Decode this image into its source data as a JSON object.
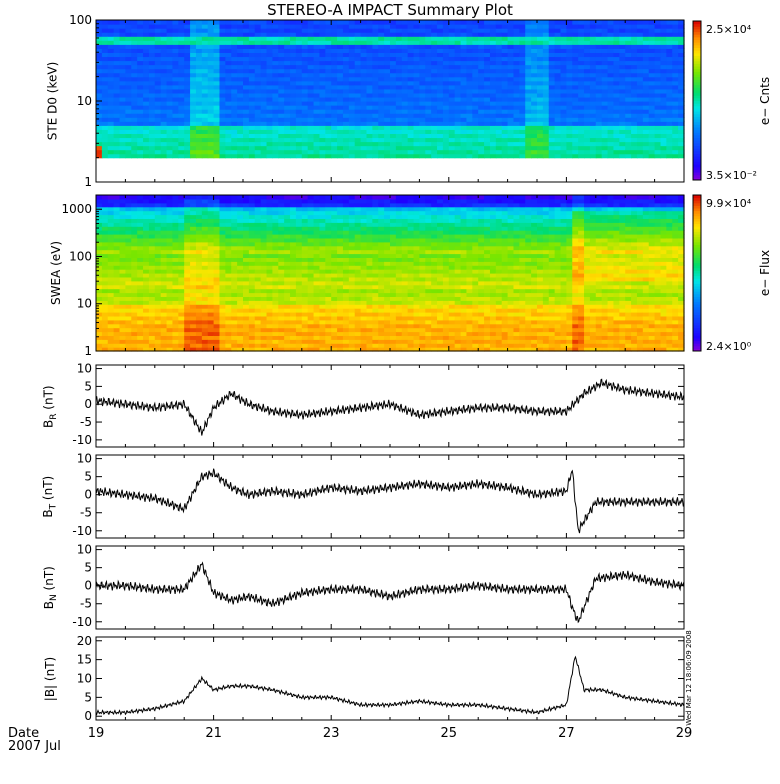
{
  "title": "STEREO-A IMPACT Summary Plot",
  "timestamp": "Wed Mar 12 18:06:09 2008",
  "date_label": {
    "line1": "Date",
    "line2": "2007 Jul"
  },
  "colors": {
    "background": "#ffffff",
    "axes": "#000000",
    "trace": "#000000"
  },
  "chart_data": [
    {
      "type": "heatmap",
      "id": "ste",
      "ylabel": "STE D0 (keV)",
      "yscale": "log",
      "ylim": [
        1,
        100
      ],
      "yticks": [
        "1",
        "10",
        "100"
      ],
      "colorbar": {
        "label": "e− Cnts",
        "max": "2.5×10⁴",
        "min": "3.5×10⁻²"
      },
      "x_day_range": [
        19,
        29
      ]
    },
    {
      "type": "heatmap",
      "id": "swea",
      "ylabel": "SWEA (eV)",
      "yscale": "log",
      "ylim": [
        1,
        2000
      ],
      "yticks": [
        "1",
        "10",
        "100",
        "1000"
      ],
      "colorbar": {
        "label": "e− Flux",
        "max": "9.9×10⁴",
        "min": "2.4×10⁰"
      },
      "x_day_range": [
        19,
        29
      ]
    },
    {
      "type": "line",
      "id": "br",
      "ylabel": "B_R (nT)",
      "ylim": [
        -12,
        11
      ],
      "yticks": [
        -10,
        -5,
        0,
        5,
        10
      ],
      "series": [
        {
          "x": [
            19.0,
            19.5,
            20.0,
            20.5,
            20.8,
            21.0,
            21.3,
            21.6,
            22.0,
            22.5,
            23.0,
            23.5,
            24.0,
            24.5,
            25.0,
            25.5,
            26.0,
            26.5,
            27.0,
            27.3,
            27.6,
            28.0,
            28.5,
            29.0
          ],
          "y": [
            1,
            0,
            -1,
            0,
            -8,
            -1,
            3,
            0,
            -2,
            -3,
            -2,
            -1,
            0,
            -3,
            -2,
            -1,
            -1,
            -2,
            -2,
            3,
            6,
            4,
            3,
            2
          ]
        }
      ]
    },
    {
      "type": "line",
      "id": "bt",
      "ylabel": "B_T (nT)",
      "ylim": [
        -12,
        11
      ],
      "yticks": [
        -10,
        -5,
        0,
        5,
        10
      ],
      "series": [
        {
          "x": [
            19.0,
            19.5,
            20.0,
            20.5,
            20.8,
            21.0,
            21.3,
            21.6,
            22.0,
            22.5,
            23.0,
            23.5,
            24.0,
            24.5,
            25.0,
            25.5,
            26.0,
            26.5,
            27.0,
            27.1,
            27.2,
            27.5,
            28.0,
            28.5,
            29.0
          ],
          "y": [
            1,
            0,
            -1,
            -4,
            5,
            6,
            2,
            0,
            1,
            0,
            2,
            1,
            2,
            3,
            2,
            3,
            2,
            0,
            1,
            7,
            -10,
            -2,
            -2,
            -2,
            -2
          ]
        }
      ]
    },
    {
      "type": "line",
      "id": "bn",
      "ylabel": "B_N (nT)",
      "ylim": [
        -12,
        11
      ],
      "yticks": [
        -10,
        -5,
        0,
        5,
        10
      ],
      "series": [
        {
          "x": [
            19.0,
            19.5,
            20.0,
            20.5,
            20.8,
            21.0,
            21.3,
            21.6,
            22.0,
            22.5,
            23.0,
            23.5,
            24.0,
            24.5,
            25.0,
            25.5,
            26.0,
            26.5,
            27.0,
            27.1,
            27.2,
            27.5,
            28.0,
            28.5,
            29.0
          ],
          "y": [
            0,
            0,
            -1,
            -1,
            6,
            -2,
            -4,
            -3,
            -5,
            -2,
            -1,
            -1,
            -3,
            -1,
            -1,
            0,
            -1,
            -1,
            -1,
            -6,
            -10,
            2,
            3,
            1,
            0
          ]
        }
      ]
    },
    {
      "type": "line",
      "id": "bmag",
      "ylabel": "|B| (nT)",
      "ylim": [
        -1,
        21
      ],
      "yticks": [
        0,
        5,
        10,
        15,
        20
      ],
      "series": [
        {
          "x": [
            19.0,
            19.5,
            20.0,
            20.5,
            20.8,
            21.0,
            21.3,
            21.6,
            22.0,
            22.5,
            23.0,
            23.5,
            24.0,
            24.5,
            25.0,
            25.5,
            26.0,
            26.5,
            27.0,
            27.15,
            27.3,
            27.6,
            28.0,
            28.5,
            29.0
          ],
          "y": [
            1,
            1,
            2,
            4,
            10,
            7,
            8,
            8,
            7,
            5,
            5,
            3,
            3,
            4,
            3,
            3,
            2,
            1,
            3,
            16,
            7,
            7,
            5,
            4,
            3
          ]
        }
      ]
    }
  ],
  "x_axis": {
    "days": [
      19,
      21,
      23,
      25,
      27,
      29
    ],
    "range": [
      19,
      29
    ]
  }
}
